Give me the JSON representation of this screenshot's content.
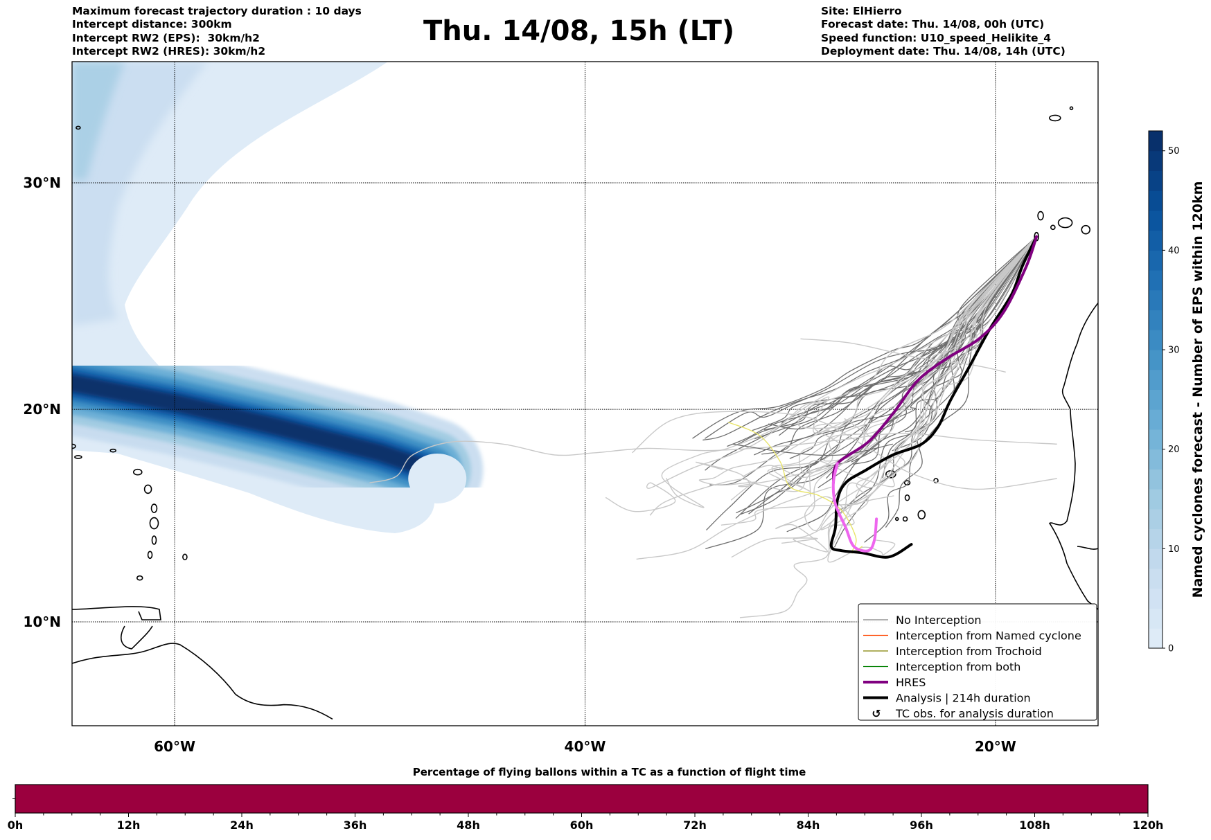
{
  "header": {
    "left_lines": [
      "Maximum forecast trajectory duration : 10 days",
      "Intercept distance: 300km",
      "Intercept RW2 (EPS):  30km/h2",
      "Intercept RW2 (HRES): 30km/h2"
    ],
    "title": "Thu. 14/08, 15h (LT)",
    "right_lines": [
      "Site: ElHierro",
      "Forecast date: Thu. 14/08, 00h (UTC)",
      "Speed function: U10_speed_Helikite_4",
      "Deployment date: Thu. 14/08, 14h (UTC)"
    ]
  },
  "chart_data": [
    {
      "type": "map",
      "extent": {
        "lon": [
          -65,
          -15
        ],
        "lat": [
          5.5,
          35.5
        ]
      },
      "lat_ticks": [
        {
          "value": 30,
          "label": "30°N"
        },
        {
          "value": 20,
          "label": "20°N"
        },
        {
          "value": 10,
          "label": "10°N"
        }
      ],
      "lon_ticks": [
        {
          "value": -60,
          "label": "60°W"
        },
        {
          "value": -40,
          "label": "40°W"
        },
        {
          "value": -20,
          "label": "20°W"
        }
      ],
      "grid": true,
      "cyclone_density_field": {
        "description_units": "Number of EPS within 120km",
        "core_track": [
          [
            -65,
            21.2
          ],
          [
            -60,
            20.3
          ],
          [
            -55,
            19.2
          ],
          [
            -50,
            18.0
          ],
          [
            -47.5,
            17.2
          ]
        ]
      },
      "colorbar": {
        "label": "Named cyclones forecast - Number of EPS within 120km",
        "range": [
          0,
          52
        ],
        "ticks": [
          0,
          10,
          20,
          30,
          40,
          50
        ],
        "colors": [
          "#deebf7",
          "#c6dbef",
          "#9ecae1",
          "#6baed6",
          "#4292c6",
          "#2171b5",
          "#08519c",
          "#08306b"
        ]
      },
      "legend": {
        "position": "lower-right",
        "entries": [
          {
            "label": "No Interception",
            "color": "#808080",
            "style": "thin"
          },
          {
            "label": "Interception from Named cyclone",
            "color": "#ff4500",
            "style": "thin"
          },
          {
            "label": "Interception from Trochoid",
            "color": "#808000",
            "style": "thin"
          },
          {
            "label": "Interception from both",
            "color": "#008000",
            "style": "thin"
          },
          {
            "label": "HRES",
            "color": "#800080",
            "style": "thick"
          },
          {
            "label": "Analysis | 214h duration",
            "color": "#000000",
            "style": "thick"
          },
          {
            "label": "TC obs. for analysis duration",
            "color": "#000000",
            "style": "marker",
            "marker": "↺"
          }
        ]
      },
      "launch_site": {
        "name": "ElHierro",
        "lon": -18.0,
        "lat": 27.7
      },
      "hres_track": [
        [
          -18.0,
          27.7
        ],
        [
          -18.5,
          26.4
        ],
        [
          -19.6,
          24.4
        ],
        [
          -20.8,
          23.2
        ],
        [
          -22.4,
          22.3
        ],
        [
          -23.8,
          21.3
        ],
        [
          -25.0,
          19.8
        ],
        [
          -26.2,
          18.5
        ],
        [
          -27.7,
          17.5
        ],
        [
          -27.9,
          16.6
        ],
        [
          -27.8,
          15.6
        ],
        [
          -27.3,
          14.5
        ],
        [
          -26.9,
          13.6
        ],
        [
          -26.2,
          13.4
        ],
        [
          -25.9,
          13.9
        ],
        [
          -25.8,
          14.9
        ]
      ],
      "hres_late_color": "#ee66ee",
      "analysis_track": [
        [
          -18.0,
          27.7
        ],
        [
          -18.7,
          26.4
        ],
        [
          -19.2,
          25.2
        ],
        [
          -20.3,
          23.6
        ],
        [
          -21.3,
          21.9
        ],
        [
          -22.2,
          20.4
        ],
        [
          -22.8,
          19.2
        ],
        [
          -23.6,
          18.4
        ],
        [
          -25.0,
          17.9
        ],
        [
          -26.3,
          17.2
        ],
        [
          -27.3,
          16.6
        ],
        [
          -27.7,
          15.8
        ],
        [
          -27.8,
          14.5
        ],
        [
          -28.0,
          13.6
        ],
        [
          -27.5,
          13.4
        ],
        [
          -26.5,
          13.3
        ],
        [
          -25.2,
          13.1
        ],
        [
          -24.1,
          13.7
        ]
      ],
      "trochoid_track": [
        [
          -33.0,
          19.4
        ],
        [
          -31.5,
          18.8
        ],
        [
          -30.5,
          17.6
        ],
        [
          -30.0,
          16.4
        ],
        [
          -28.6,
          16.0
        ],
        [
          -27.5,
          15.3
        ],
        [
          -26.8,
          14.0
        ],
        [
          -27.0,
          13.3
        ],
        [
          -26.5,
          13.6
        ]
      ],
      "ensemble_count_visible": 51
    },
    {
      "type": "bar",
      "title": "Percentage of flying ballons within a TC as a function of flight time",
      "xlim": [
        0,
        120
      ],
      "x_ticks": [
        "0h",
        "12h",
        "24h",
        "36h",
        "48h",
        "60h",
        "72h",
        "84h",
        "96h",
        "108h",
        "120h"
      ],
      "x_tick_values": [
        0,
        12,
        24,
        36,
        48,
        60,
        72,
        84,
        96,
        108,
        120
      ],
      "minor_step_h": 3,
      "segments": [
        {
          "from": 0,
          "to": 120,
          "color": "#9b003e"
        }
      ]
    }
  ]
}
